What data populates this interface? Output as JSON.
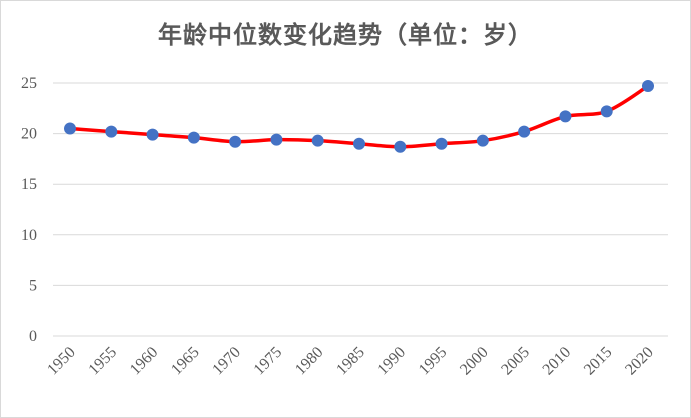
{
  "chart_data": {
    "type": "line",
    "title": "年龄中位数变化趋势（单位：岁）",
    "xlabel": "",
    "ylabel": "",
    "x": [
      "1950",
      "1955",
      "1960",
      "1965",
      "1970",
      "1975",
      "1980",
      "1985",
      "1990",
      "1995",
      "2000",
      "2005",
      "2010",
      "2015",
      "2020"
    ],
    "series": [
      {
        "values": [
          20.5,
          20.2,
          19.9,
          19.6,
          19.2,
          19.4,
          19.3,
          19.0,
          18.7,
          19.0,
          19.3,
          20.2,
          21.7,
          22.2,
          24.7
        ],
        "line_color": "#ff0000",
        "marker_color": "#4472c4"
      }
    ],
    "ylim": [
      0,
      25
    ],
    "yticks": [
      "0",
      "5",
      "10",
      "15",
      "20",
      "25"
    ],
    "grid": true,
    "legend": "none",
    "colors": {
      "grid": "#d9d9d9",
      "text": "#595959"
    }
  }
}
